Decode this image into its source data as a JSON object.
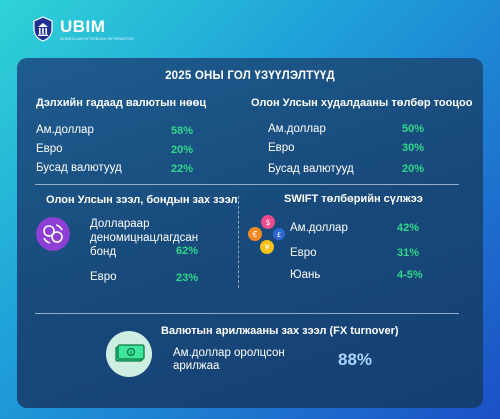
{
  "brand": {
    "name": "UBIM",
    "subtitle": "MONGOLIAN INTERBANK INFORMATION"
  },
  "title": "2025 ОНЫ ГОЛ ҮЗҮҮЛЭЛТҮҮД",
  "reserves": {
    "heading": "Дэлхийн гадаад валютын нөөц",
    "rows": [
      {
        "label": "Ам.доллар",
        "value": "58%"
      },
      {
        "label": "Евро",
        "value": "20%"
      },
      {
        "label": "Бусад валютууд",
        "value": "22%"
      }
    ]
  },
  "payments": {
    "heading": "Олон Улсын худалдааны төлбөр тооцоо",
    "rows": [
      {
        "label": "Ам.доллар",
        "value": "50%"
      },
      {
        "label": "Евро",
        "value": "30%"
      },
      {
        "label": "Бусад валютууд",
        "value": "20%"
      }
    ]
  },
  "bonds": {
    "heading": "Олон Улсын зээл, бондын зах зээл",
    "rows": [
      {
        "label": "Доллараар деномицнацлагдсан бонд",
        "label_lines": [
          "Доллараар",
          "деномицнацлагдсан",
          "бонд"
        ],
        "value": "62%"
      },
      {
        "label": "Евро",
        "value": "23%"
      }
    ]
  },
  "swift": {
    "heading": "SWIFT төлбөрийн сүлжээ",
    "rows": [
      {
        "label": "Ам.доллар",
        "value": "42%"
      },
      {
        "label": "Евро",
        "value": "31%"
      },
      {
        "label": "Юань",
        "value": "4-5%"
      }
    ]
  },
  "fx": {
    "heading": "Валютын арилжааны зах зээл (FX turnover)",
    "label_lines": [
      "Ам.доллар оролцсон",
      "арилжаа"
    ],
    "value": "88%"
  },
  "colors": {
    "accent": "#2fd88a",
    "card": "#1b4f8a",
    "icon_purple": "#8e3fd6",
    "icon_green": "#2fd88a"
  },
  "icons": [
    "bank-crest-icon",
    "currency-exchange-icon",
    "currency-coins-icon",
    "banknote-icon"
  ]
}
